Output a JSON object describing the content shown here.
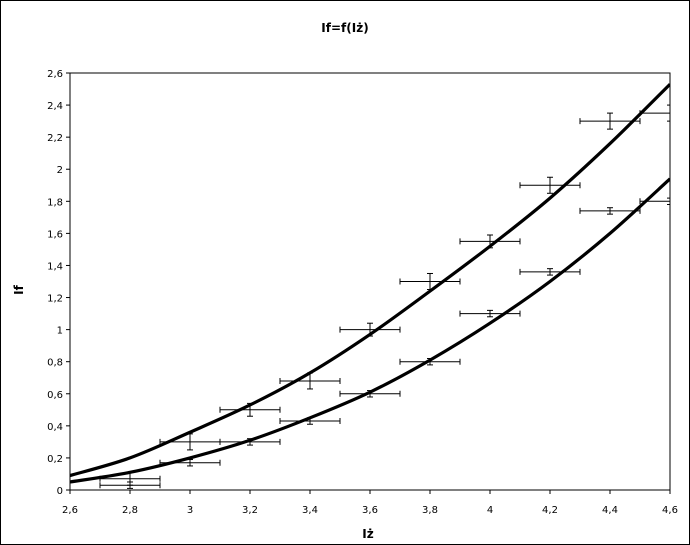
{
  "chart_data": {
    "type": "scatter",
    "title": "If=f(Iż)",
    "xlabel": "Iż",
    "ylabel": "If",
    "xlim": [
      2.6,
      4.6
    ],
    "ylim": [
      0,
      2.6
    ],
    "xticks": [
      "2,6",
      "2,8",
      "3",
      "3,2",
      "3,4",
      "3,6",
      "3,8",
      "4",
      "4,2",
      "4,4",
      "4,6"
    ],
    "yticks": [
      "0",
      "0,2",
      "0,4",
      "0,6",
      "0,8",
      "1",
      "1,2",
      "1,4",
      "1,6",
      "1,8",
      "2",
      "2,2",
      "2,4",
      "2,6"
    ],
    "grid": false,
    "legend": "none",
    "series": [
      {
        "points": [
          {
            "x": 2.8,
            "y": 0.07,
            "xerr": 0.1,
            "yerr": 0.04
          },
          {
            "x": 3.0,
            "y": 0.3,
            "xerr": 0.1,
            "yerr": 0.05
          },
          {
            "x": 3.2,
            "y": 0.5,
            "xerr": 0.1,
            "yerr": 0.04
          },
          {
            "x": 3.4,
            "y": 0.68,
            "xerr": 0.1,
            "yerr": 0.05
          },
          {
            "x": 3.6,
            "y": 1.0,
            "xerr": 0.1,
            "yerr": 0.04
          },
          {
            "x": 3.8,
            "y": 1.3,
            "xerr": 0.1,
            "yerr": 0.05
          },
          {
            "x": 4.0,
            "y": 1.55,
            "xerr": 0.1,
            "yerr": 0.04
          },
          {
            "x": 4.2,
            "y": 1.9,
            "xerr": 0.1,
            "yerr": 0.05
          },
          {
            "x": 4.4,
            "y": 2.3,
            "xerr": 0.1,
            "yerr": 0.05
          },
          {
            "x": 4.6,
            "y": 2.35,
            "xerr": 0.1,
            "yerr": 0.05
          }
        ],
        "fit": [
          [
            2.6,
            0.09
          ],
          [
            2.8,
            0.2
          ],
          [
            3.0,
            0.36
          ],
          [
            3.2,
            0.53
          ],
          [
            3.4,
            0.73
          ],
          [
            3.6,
            0.97
          ],
          [
            3.8,
            1.24
          ],
          [
            4.0,
            1.52
          ],
          [
            4.2,
            1.82
          ],
          [
            4.4,
            2.16
          ],
          [
            4.6,
            2.53
          ]
        ]
      },
      {
        "points": [
          {
            "x": 2.8,
            "y": 0.03,
            "xerr": 0.1,
            "yerr": 0.02
          },
          {
            "x": 3.0,
            "y": 0.17,
            "xerr": 0.1,
            "yerr": 0.02
          },
          {
            "x": 3.2,
            "y": 0.3,
            "xerr": 0.1,
            "yerr": 0.02
          },
          {
            "x": 3.4,
            "y": 0.43,
            "xerr": 0.1,
            "yerr": 0.02
          },
          {
            "x": 3.6,
            "y": 0.6,
            "xerr": 0.1,
            "yerr": 0.02
          },
          {
            "x": 3.8,
            "y": 0.8,
            "xerr": 0.1,
            "yerr": 0.02
          },
          {
            "x": 4.0,
            "y": 1.1,
            "xerr": 0.1,
            "yerr": 0.02
          },
          {
            "x": 4.2,
            "y": 1.36,
            "xerr": 0.1,
            "yerr": 0.02
          },
          {
            "x": 4.4,
            "y": 1.74,
            "xerr": 0.1,
            "yerr": 0.02
          },
          {
            "x": 4.6,
            "y": 1.8,
            "xerr": 0.1,
            "yerr": 0.02
          }
        ],
        "fit": [
          [
            2.6,
            0.05
          ],
          [
            2.8,
            0.11
          ],
          [
            3.0,
            0.2
          ],
          [
            3.2,
            0.31
          ],
          [
            3.4,
            0.45
          ],
          [
            3.6,
            0.61
          ],
          [
            3.8,
            0.81
          ],
          [
            4.0,
            1.04
          ],
          [
            4.2,
            1.3
          ],
          [
            4.4,
            1.6
          ],
          [
            4.6,
            1.94
          ]
        ]
      }
    ]
  }
}
